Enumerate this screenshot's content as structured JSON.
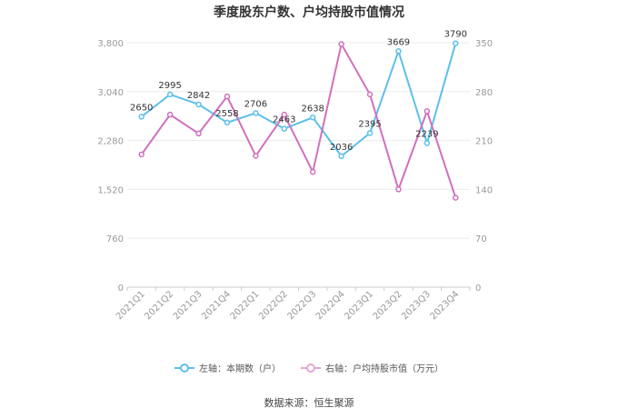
{
  "colors": {
    "left_series": "#5bc0eb",
    "right_series": "#d16fbd",
    "grid": "#ececec",
    "axis_text": "#999999",
    "label_text": "#333333"
  },
  "footer": {
    "source": "数据来源：恒生聚源"
  },
  "chart_data": {
    "type": "line",
    "title": "季度股东户数、户均持股市值情况",
    "categories": [
      "2021Q1",
      "2021Q2",
      "2021Q3",
      "2021Q4",
      "2022Q1",
      "2022Q2",
      "2022Q3",
      "2022Q4",
      "2023Q1",
      "2023Q2",
      "2023Q3",
      "2023Q4"
    ],
    "left_axis": {
      "ticks": [
        0,
        760,
        1520,
        2280,
        3040,
        3800
      ],
      "tick_labels": [
        "0",
        "760",
        "1,520",
        "2,280",
        "3,040",
        "3,800"
      ],
      "ylim": [
        0,
        3800
      ]
    },
    "right_axis": {
      "ticks": [
        0,
        70,
        140,
        210,
        280,
        350
      ],
      "tick_labels": [
        "0",
        "70",
        "140",
        "210",
        "280",
        "350"
      ],
      "ylim": [
        0,
        350
      ]
    },
    "grid": true,
    "legend_position": "bottom",
    "series": [
      {
        "name": "左轴：本期数（户）",
        "axis": "left",
        "values": [
          2650,
          2995,
          2842,
          2558,
          2706,
          2463,
          2638,
          2036,
          2395,
          3669,
          2239,
          3790
        ],
        "data_labels": [
          "2650",
          "2995",
          "2842",
          "2558",
          "2706",
          "2463",
          "2638",
          "2036",
          "2395",
          "3669",
          "2239",
          "3790"
        ]
      },
      {
        "name": "右轴：户均持股市值（万元）",
        "axis": "right",
        "values": [
          190,
          247,
          220,
          273,
          188,
          247,
          165,
          348,
          276,
          140,
          252,
          128
        ]
      }
    ]
  }
}
